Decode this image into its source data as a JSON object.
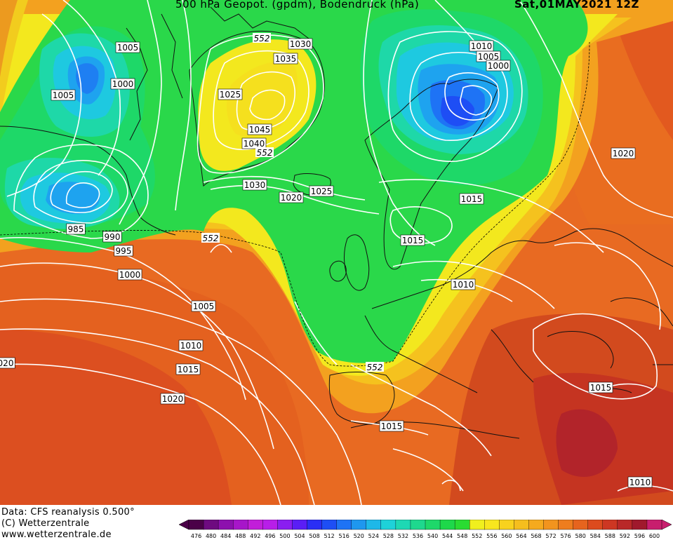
{
  "header": {
    "title": "500 hPa Geopot. (gpdm), Bodendruck (hPa)",
    "date": "Sat,01MAY2021 12Z"
  },
  "credits": {
    "data": "Data: CFS reanalysis 0.500°",
    "copyright": "(C) Wetterzentrale",
    "website": "www.wetterzentrale.de"
  },
  "colorbar": {
    "unit": "gpdm",
    "ticks": [
      "476",
      "480",
      "484",
      "488",
      "492",
      "496",
      "500",
      "504",
      "508",
      "512",
      "516",
      "520",
      "524",
      "528",
      "532",
      "536",
      "540",
      "544",
      "548",
      "552",
      "556",
      "560",
      "564",
      "568",
      "572",
      "576",
      "580",
      "584",
      "588",
      "592",
      "596",
      "600"
    ],
    "colors": [
      "#4b0048",
      "#6e0a80",
      "#8d10ae",
      "#a716c9",
      "#c21ed9",
      "#b81ee8",
      "#8a1ef0",
      "#5a1ef5",
      "#2a2ef5",
      "#1e4ef5",
      "#1e73f5",
      "#1e97ef",
      "#1eb8e8",
      "#1ed2d9",
      "#1ed8b4",
      "#1ed88e",
      "#1ed86a",
      "#1ed84a",
      "#2adc32",
      "#f0f01e",
      "#f8e61e",
      "#f8d21e",
      "#f5be1e",
      "#f5aa1e",
      "#f2941e",
      "#ee7d1e",
      "#e6641e",
      "#dc4b1e",
      "#cd3723",
      "#b92828",
      "#a0192d",
      "#c81e6e"
    ]
  },
  "pressure_labels": [
    {
      "text": "1020",
      "cls": "white"
    },
    {
      "text": "1005",
      "cls": "white"
    },
    {
      "text": "1000",
      "cls": "white"
    },
    {
      "text": "1005",
      "cls": "white"
    },
    {
      "text": "985",
      "cls": "white"
    },
    {
      "text": "990",
      "cls": "white"
    },
    {
      "text": "995",
      "cls": "white"
    },
    {
      "text": "1000",
      "cls": "white"
    },
    {
      "text": "1005",
      "cls": "white"
    },
    {
      "text": "1010",
      "cls": "white"
    },
    {
      "text": "1015",
      "cls": "white"
    },
    {
      "text": "1020",
      "cls": "white"
    },
    {
      "text": "020",
      "cls": "white"
    },
    {
      "text": "1030",
      "cls": "white"
    },
    {
      "text": "1035",
      "cls": "white"
    },
    {
      "text": "1025",
      "cls": "white"
    },
    {
      "text": "1045",
      "cls": "white"
    },
    {
      "text": "1040",
      "cls": "white"
    },
    {
      "text": "1030",
      "cls": "white"
    },
    {
      "text": "1020",
      "cls": "white"
    },
    {
      "text": "1025",
      "cls": "white"
    },
    {
      "text": "1010",
      "cls": "white"
    },
    {
      "text": "1005",
      "cls": "white"
    },
    {
      "text": "1000",
      "cls": "white"
    },
    {
      "text": "1015",
      "cls": "white"
    },
    {
      "text": "1015",
      "cls": "white"
    },
    {
      "text": "1020",
      "cls": "white"
    },
    {
      "text": "1010",
      "cls": "white"
    },
    {
      "text": "1015",
      "cls": "white"
    },
    {
      "text": "1015",
      "cls": "white"
    },
    {
      "text": "1010",
      "cls": "white"
    },
    {
      "text": "1015",
      "cls": "white"
    }
  ],
  "geopotential_labels": [
    "552",
    "552",
    "552",
    "552"
  ]
}
